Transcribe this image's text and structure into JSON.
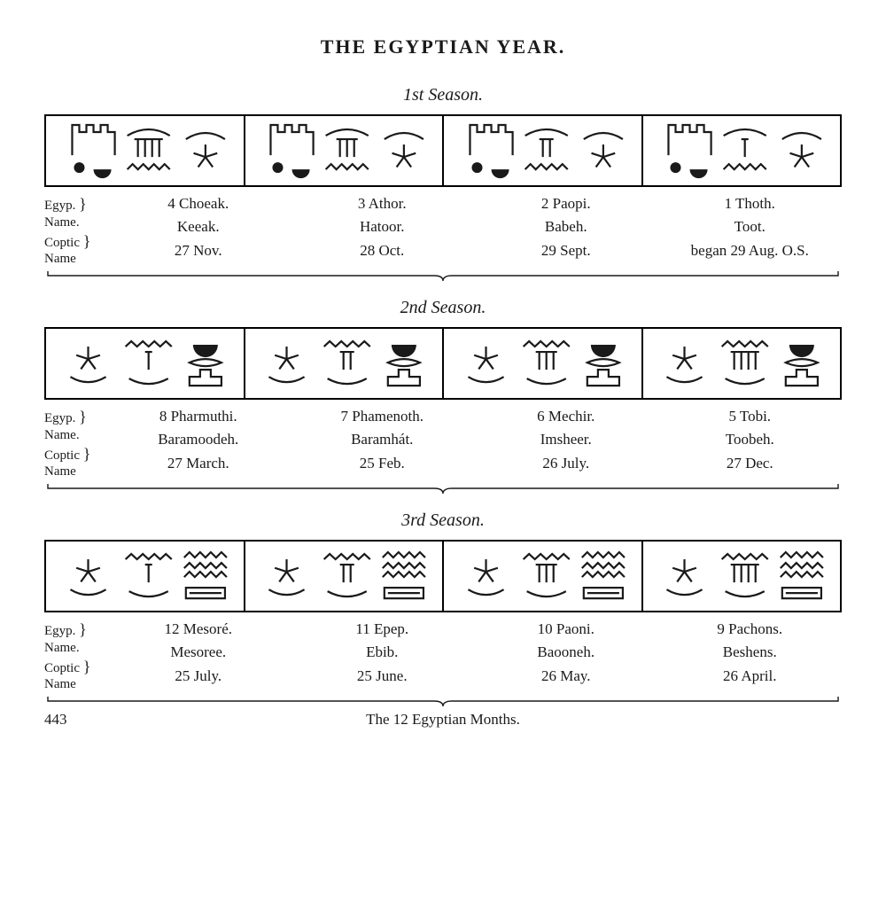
{
  "title": "THE EGYPTIAN YEAR.",
  "row_label_egyp": "Egyp.\nName.",
  "row_label_coptic": "Coptic\nName",
  "caption": "The 12 Egyptian Months.",
  "page_number": "443",
  "seasons": [
    {
      "title": "1st Season.",
      "glyph_variant": "season1",
      "months": [
        {
          "strokes": 4,
          "egyp": "4 Choeak.",
          "coptic": "Keeak.",
          "date": "27 Nov."
        },
        {
          "strokes": 3,
          "egyp": "3 Athor.",
          "coptic": "Hatoor.",
          "date": "28 Oct."
        },
        {
          "strokes": 2,
          "egyp": "2 Paopi.",
          "coptic": "Babeh.",
          "date": "29 Sept."
        },
        {
          "strokes": 1,
          "egyp": "1 Thoth.",
          "coptic": "Toot.",
          "date": "began 29 Aug. O.S."
        }
      ]
    },
    {
      "title": "2nd Season.",
      "glyph_variant": "season2",
      "months": [
        {
          "strokes": 1,
          "egyp": "8 Pharmuthi.",
          "coptic": "Baramoodeh.",
          "date": "27 March."
        },
        {
          "strokes": 2,
          "egyp": "7 Phamenoth.",
          "coptic": "Baramhát.",
          "date": "25 Feb."
        },
        {
          "strokes": 3,
          "egyp": "6 Mechir.",
          "coptic": "Imsheer.",
          "date": "26 July."
        },
        {
          "strokes": 4,
          "egyp": "5 Tobi.",
          "coptic": "Toobeh.",
          "date": "27 Dec."
        }
      ]
    },
    {
      "title": "3rd Season.",
      "glyph_variant": "season3",
      "months": [
        {
          "strokes": 1,
          "egyp": "12 Mesoré.",
          "coptic": "Mesoree.",
          "date": "25 July."
        },
        {
          "strokes": 2,
          "egyp": "11 Epep.",
          "coptic": "Ebib.",
          "date": "25 June."
        },
        {
          "strokes": 3,
          "egyp": "10 Paoni.",
          "coptic": "Baooneh.",
          "date": "26 May."
        },
        {
          "strokes": 4,
          "egyp": "9 Pachons.",
          "coptic": "Beshens.",
          "date": "26 April."
        }
      ]
    }
  ],
  "colors": {
    "ink": "#1a1a1a",
    "bg": "#ffffff"
  },
  "stroke_width": 2.2
}
